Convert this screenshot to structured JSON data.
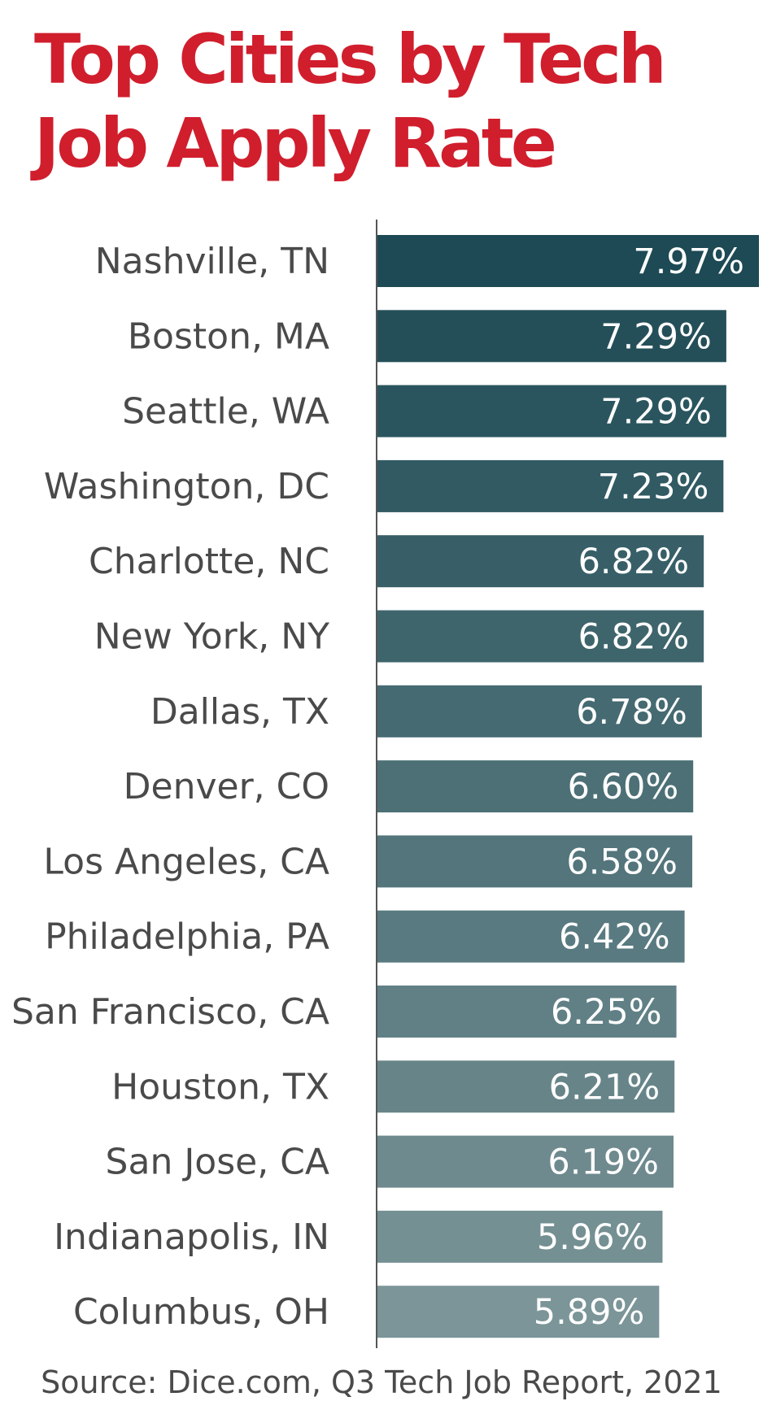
{
  "title": "Top Cities by Tech Job Apply Rate",
  "source": "Source: Dice.com, Q3 Tech Job Report, 2021",
  "chart_data": {
    "type": "bar",
    "orientation": "horizontal",
    "title": "Top Cities by Tech Job Apply Rate",
    "xlabel": "",
    "ylabel": "",
    "xlim": [
      0,
      7.97
    ],
    "grid": false,
    "categories": [
      "Nashville, TN",
      "Boston, MA",
      "Seattle, WA",
      "Washington, DC",
      "Charlotte, NC",
      "New York, NY",
      "Dallas, TX",
      "Denver, CO",
      "Los Angeles, CA",
      "Philadelphia, PA",
      "San Francisco, CA",
      "Houston, TX",
      "San Jose, CA",
      "Indianapolis, IN",
      "Columbus, OH"
    ],
    "values": [
      7.97,
      7.29,
      7.29,
      7.23,
      6.82,
      6.82,
      6.78,
      6.6,
      6.58,
      6.42,
      6.25,
      6.21,
      6.19,
      5.96,
      5.89
    ],
    "value_labels": [
      "7.97%",
      "7.29%",
      "7.29%",
      "7.23%",
      "6.82%",
      "6.82%",
      "6.78%",
      "6.60%",
      "6.58%",
      "6.42%",
      "6.25%",
      "6.21%",
      "6.19%",
      "5.96%",
      "5.89%"
    ],
    "colors": {
      "bar_darkest": "#1d4a54",
      "bar_lightest": "#7b9598",
      "axis": "#555555",
      "title": "#d01e2d"
    }
  }
}
